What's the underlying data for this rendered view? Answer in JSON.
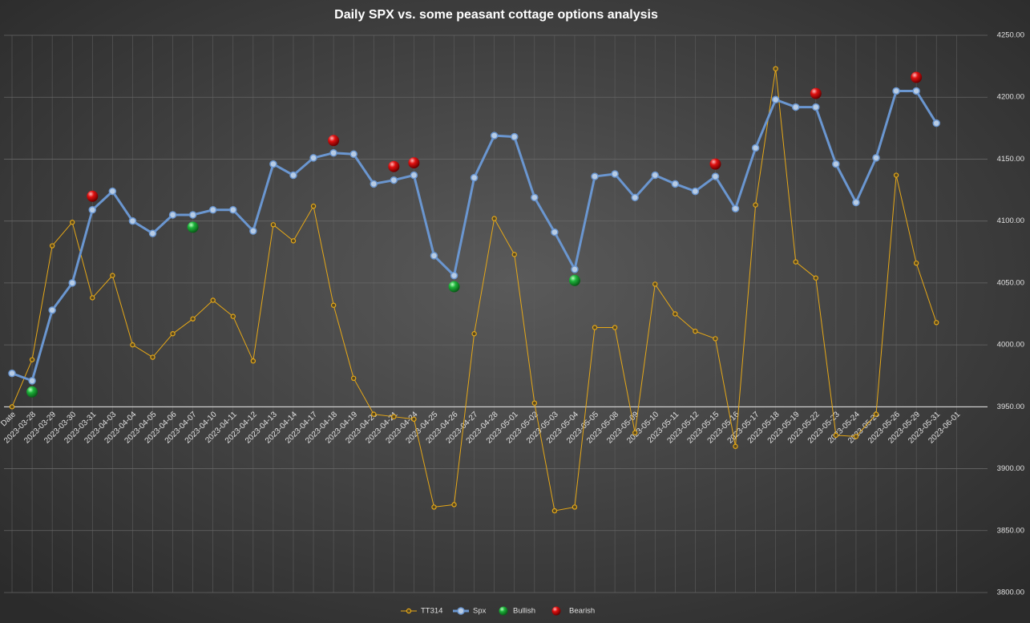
{
  "chart_data": {
    "type": "line",
    "title": "Daily SPX vs. some peasant cottage options analysis",
    "categories": [
      "Date",
      "2023-03-28",
      "2023-03-29",
      "2023-03-30",
      "2023-03-31",
      "2023-04-03",
      "2023-04-04",
      "2023-04-05",
      "2023-04-06",
      "2023-04-07",
      "2023-04-10",
      "2023-04-11",
      "2023-04-12",
      "2023-04-13",
      "2023-04-14",
      "2023-04-17",
      "2023-04-18",
      "2023-04-19",
      "2023-04-20",
      "2023-04-21",
      "2023-04-24",
      "2023-04-25",
      "2023-04-26",
      "2023-04-27",
      "2023-04-28",
      "2023-05-01",
      "2023-05-02",
      "2023-05-03",
      "2023-05-04",
      "2023-05-05",
      "2023-05-08",
      "2023-05-09",
      "2023-05-10",
      "2023-05-11",
      "2023-05-12",
      "2023-05-15",
      "2023-05-16",
      "2023-05-17",
      "2023-05-18",
      "2023-05-19",
      "2023-05-22",
      "2023-05-23",
      "2023-05-24",
      "2023-05-25",
      "2023-05-26",
      "2023-05-29",
      "2023-05-31",
      "2023-06-01"
    ],
    "series": [
      {
        "name": "TT314",
        "color": "#e6a817",
        "show_line": true,
        "marker": "small",
        "values": [
          3950,
          3988,
          4080,
          4099,
          4038,
          4056,
          4000,
          3990,
          4009,
          4021,
          4036,
          4023,
          3987,
          4097,
          4084,
          4112,
          4032,
          3973,
          3944,
          3942,
          3940,
          3869,
          3871,
          4009,
          4102,
          4073,
          3953,
          3866,
          3869,
          4014,
          4014,
          3929,
          4049,
          4025,
          4011,
          4005,
          3918,
          4113,
          4223,
          4067,
          4054,
          3927,
          3926,
          3944,
          4137,
          4066,
          4018,
          null
        ]
      },
      {
        "name": "Spx",
        "color": "#6a96d0",
        "show_line": true,
        "marker": "medium",
        "values": [
          3977,
          3971,
          4028,
          4050,
          4109,
          4124,
          4100,
          4090,
          4105,
          4105,
          4109,
          4109,
          4092,
          4146,
          4137,
          4151,
          4155,
          4154,
          4130,
          4133,
          4137,
          4072,
          4056,
          4135,
          4169,
          4168,
          4119,
          4091,
          4061,
          4136,
          4138,
          4119,
          4137,
          4130,
          4124,
          4136,
          4110,
          4159,
          4198,
          4192,
          4192,
          4146,
          4115,
          4151,
          4205,
          4205,
          4179,
          null
        ]
      },
      {
        "name": "Bullish",
        "color": "#1db33a",
        "show_line": false,
        "marker": "ball",
        "values": [
          null,
          3962,
          null,
          null,
          null,
          null,
          null,
          null,
          null,
          4095,
          null,
          null,
          null,
          null,
          null,
          null,
          null,
          null,
          null,
          null,
          null,
          null,
          4047,
          null,
          null,
          null,
          null,
          null,
          4052,
          null,
          null,
          null,
          null,
          null,
          null,
          null,
          null,
          null,
          null,
          null,
          null,
          null,
          null,
          null,
          null,
          null,
          null,
          null
        ]
      },
      {
        "name": "Bearish",
        "color": "#e01010",
        "show_line": false,
        "marker": "ball",
        "values": [
          null,
          null,
          null,
          null,
          4120,
          null,
          null,
          null,
          null,
          null,
          null,
          null,
          null,
          null,
          null,
          null,
          4165,
          null,
          null,
          4144,
          4147,
          null,
          null,
          null,
          null,
          null,
          null,
          null,
          null,
          null,
          null,
          null,
          null,
          null,
          null,
          4146,
          null,
          null,
          null,
          null,
          4203,
          null,
          null,
          null,
          null,
          4216,
          null,
          null
        ]
      }
    ],
    "ylim": [
      3800,
      4250
    ],
    "yticks": [
      {
        "value": 3800,
        "label": "3800.00"
      },
      {
        "value": 3850,
        "label": "3850.00"
      },
      {
        "value": 3900,
        "label": "3900.00"
      },
      {
        "value": 3950,
        "label": "3950.00"
      },
      {
        "value": 4000,
        "label": "4000.00"
      },
      {
        "value": 4050,
        "label": "4050.00"
      },
      {
        "value": 4100,
        "label": "4100.00"
      },
      {
        "value": 4150,
        "label": "4150.00"
      },
      {
        "value": 4200,
        "label": "4200.00"
      },
      {
        "value": 4250,
        "label": "4250.00"
      }
    ],
    "y_axis_side": "right",
    "x_axis_at": 3950,
    "grid": true,
    "legend": "bottom"
  }
}
